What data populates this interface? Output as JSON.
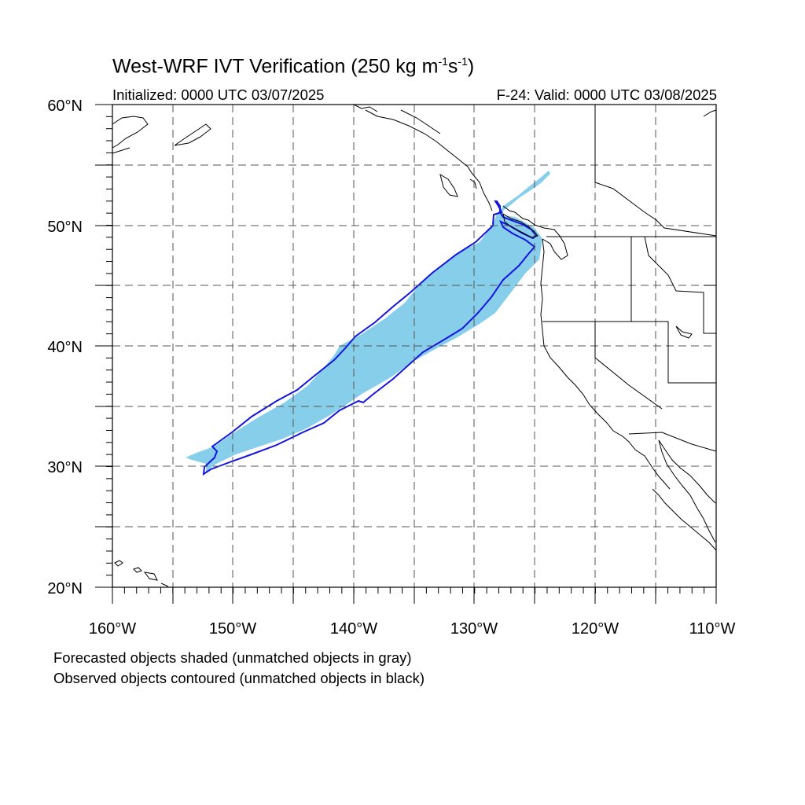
{
  "title": {
    "main": "West-WRF IVT Verification (250 kg m",
    "exp1": "-1",
    "mid": "s",
    "exp2": "-1",
    "close": ")"
  },
  "subtitle": {
    "left": "Initialized: 0000 UTC 03/07/2025",
    "right": "F-24: Valid: 0000 UTC 03/08/2025"
  },
  "axes": {
    "lon_range": [
      -160,
      -110
    ],
    "lat_range": [
      20,
      60
    ],
    "lat_ticks": [
      {
        "value": 20,
        "label": "20°N"
      },
      {
        "value": 30,
        "label": "30°N"
      },
      {
        "value": 40,
        "label": "40°N"
      },
      {
        "value": 50,
        "label": "50°N"
      },
      {
        "value": 60,
        "label": "60°N"
      }
    ],
    "lon_ticks": [
      {
        "value": -160,
        "label": "160°W"
      },
      {
        "value": -150,
        "label": "150°W"
      },
      {
        "value": -140,
        "label": "140°W"
      },
      {
        "value": -130,
        "label": "130°W"
      },
      {
        "value": -120,
        "label": "120°W"
      },
      {
        "value": -110,
        "label": "110°W"
      }
    ],
    "grid_spacing_deg": 5,
    "grid": true
  },
  "colors": {
    "forecast_fill": "#87ceeb",
    "observed_contour": "#1414e0",
    "coast": "#000000",
    "grid": "#555555"
  },
  "footer": {
    "line1": "Forecasted objects shaded (unmatched objects in gray)",
    "line2": "Observed objects contoured (unmatched objects in black)"
  }
}
